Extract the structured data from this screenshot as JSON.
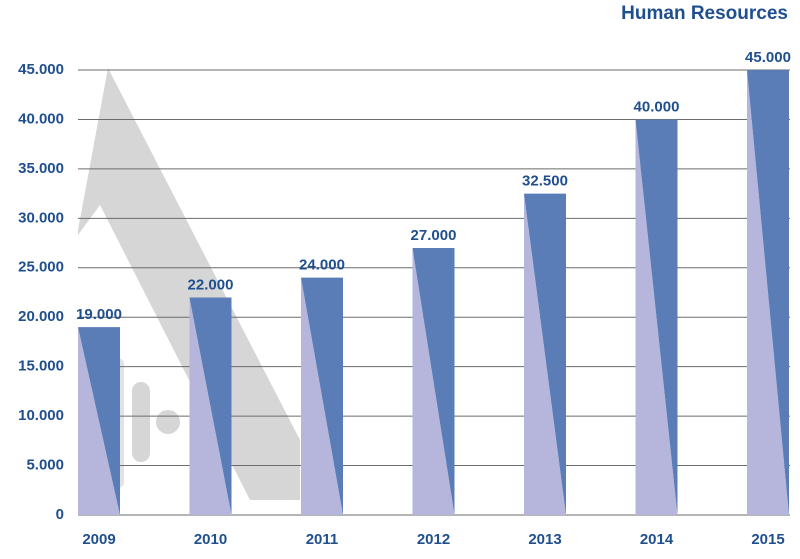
{
  "chart_data": {
    "type": "bar",
    "title": "Human Resources",
    "categories": [
      "2009",
      "2010",
      "2011",
      "2012",
      "2013",
      "2014",
      "2015"
    ],
    "values": [
      19000,
      22000,
      24000,
      27000,
      32500,
      40000,
      45000
    ],
    "value_labels": [
      "19.000",
      "22.000",
      "24.000",
      "27.000",
      "32.500",
      "40.000",
      "45.000"
    ],
    "colors": [
      "#5a7db8",
      "#b6b6dc"
    ],
    "ylim": [
      0,
      45000
    ],
    "yticks": [
      {
        "value": 0,
        "label": "0"
      },
      {
        "value": 5000,
        "label": "5.000"
      },
      {
        "value": 10000,
        "label": "10.000"
      },
      {
        "value": 15000,
        "label": "15.000"
      },
      {
        "value": 20000,
        "label": "20.000"
      },
      {
        "value": 25000,
        "label": "25.000"
      },
      {
        "value": 30000,
        "label": "30.000"
      },
      {
        "value": 35000,
        "label": "35.000"
      },
      {
        "value": 40000,
        "label": "40.000"
      },
      {
        "value": 45000,
        "label": "45.000"
      }
    ],
    "grid": true
  }
}
